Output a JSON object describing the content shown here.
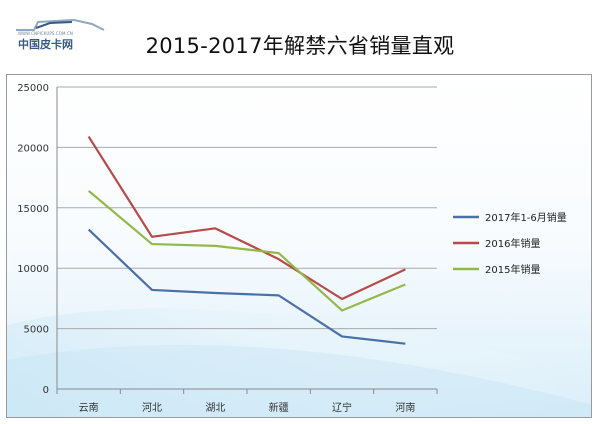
{
  "logo": {
    "small_text": "WWW.CNPICKUPS.COM.CN",
    "main_text": "中国皮卡网"
  },
  "chart_data": {
    "type": "line",
    "title": "2015-2017年解禁六省销量直观",
    "categories": [
      "云南",
      "河北",
      "湖北",
      "新疆",
      "辽宁",
      "河南"
    ],
    "series": [
      {
        "name": "2017年1-6月销量",
        "color": "#4a70a8",
        "values": [
          13200,
          8200,
          7950,
          7750,
          4350,
          3750
        ]
      },
      {
        "name": "2016年销量",
        "color": "#b84a4a",
        "values": [
          20900,
          12600,
          13300,
          10750,
          7450,
          9900
        ]
      },
      {
        "name": "2015年销量",
        "color": "#94b84a",
        "values": [
          16400,
          12000,
          11850,
          11250,
          6500,
          8650
        ]
      }
    ],
    "ylim": [
      0,
      25000
    ],
    "yticks": [
      "0",
      "5000",
      "10000",
      "15000",
      "20000",
      "25000"
    ],
    "grid": true,
    "legend_position": "right"
  }
}
